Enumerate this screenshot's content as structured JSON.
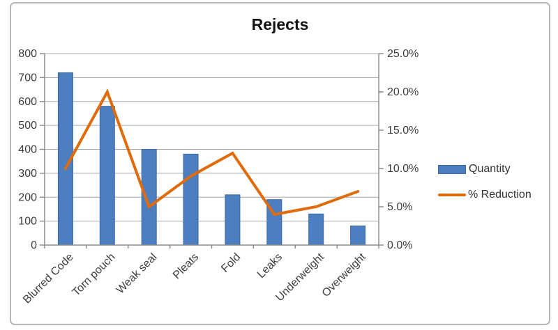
{
  "chart_data": {
    "type": "combo-bar-line",
    "title": "Rejects",
    "categories": [
      "Blurred Code",
      "Torn pouch",
      "Weak seal",
      "Pleats",
      "Fold",
      "Leaks",
      "Underweight",
      "Overweight"
    ],
    "series": [
      {
        "name": "Quantity",
        "type": "bar",
        "axis": "left",
        "values": [
          720,
          580,
          400,
          380,
          210,
          190,
          130,
          80
        ]
      },
      {
        "name": "% Reduction",
        "type": "line",
        "axis": "right",
        "unit": "%",
        "values": [
          10.0,
          20.0,
          5.0,
          9.0,
          12.0,
          4.0,
          5.0,
          7.0
        ]
      }
    ],
    "left_axis": {
      "min": 0,
      "max": 800,
      "major_step": 100,
      "labels": [
        "800",
        "700",
        "600",
        "500",
        "400",
        "300",
        "200",
        "100",
        "0"
      ]
    },
    "right_axis": {
      "min": 0,
      "max": 25,
      "major_step": 5,
      "labels": [
        "25.0%",
        "20.0%",
        "15.0%",
        "10.0%",
        "5.0%",
        "0.0%"
      ]
    },
    "grid": "horizontal",
    "legend_position": "right",
    "category_label_rotation_deg": -45
  },
  "colors": {
    "bar_fill": "#4d7ebf",
    "bar_border": "#3a69a0",
    "line": "#e06b0a",
    "gridline": "#a6a6a6",
    "axis_line": "#8c8c8c",
    "tick_text": "#3d3d3d",
    "title_text": "#141414",
    "frame_border": "#b7b7b7",
    "background": "#ffffff"
  }
}
